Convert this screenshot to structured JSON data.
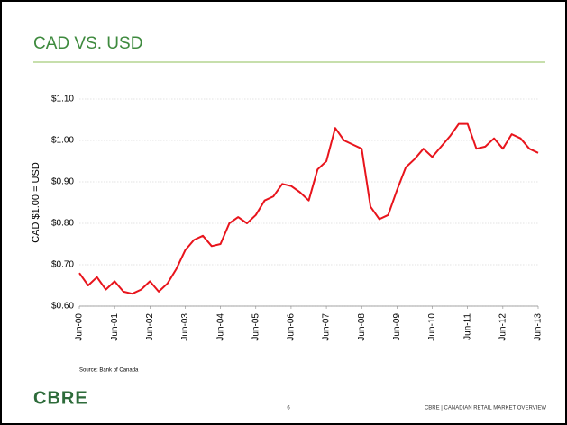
{
  "chart_data": {
    "type": "line",
    "title": "CAD VS. USD",
    "y_label": "CAD $1.00 = USD",
    "source": "Source: Bank of Canada",
    "x": [
      2000.5,
      2000.75,
      2001,
      2001.25,
      2001.5,
      2001.75,
      2002,
      2002.25,
      2002.5,
      2002.75,
      2003,
      2003.25,
      2003.5,
      2003.75,
      2004,
      2004.25,
      2004.5,
      2004.75,
      2005,
      2005.25,
      2005.5,
      2005.75,
      2006,
      2006.25,
      2006.5,
      2006.75,
      2007,
      2007.25,
      2007.5,
      2007.75,
      2008,
      2008.25,
      2008.5,
      2008.75,
      2009,
      2009.25,
      2009.5,
      2009.75,
      2010,
      2010.25,
      2010.5,
      2010.75,
      2011,
      2011.25,
      2011.5,
      2011.75,
      2012,
      2012.25,
      2012.5,
      2012.75,
      2013,
      2013.25,
      2013.5
    ],
    "series": [
      {
        "name": "CAD/USD",
        "color": "#e8141c",
        "values": [
          0.68,
          0.65,
          0.67,
          0.64,
          0.66,
          0.635,
          0.63,
          0.64,
          0.66,
          0.635,
          0.655,
          0.69,
          0.735,
          0.76,
          0.77,
          0.745,
          0.75,
          0.8,
          0.815,
          0.8,
          0.82,
          0.855,
          0.865,
          0.895,
          0.89,
          0.875,
          0.855,
          0.93,
          0.95,
          1.03,
          1,
          0.99,
          0.98,
          0.84,
          0.81,
          0.82,
          0.88,
          0.935,
          0.955,
          0.98,
          0.96,
          0.985,
          1.01,
          1.04,
          1.04,
          0.98,
          0.985,
          1.005,
          0.98,
          1.015,
          1.005,
          0.98,
          0.97
        ]
      }
    ],
    "xlim": [
      2000.5,
      2013.5
    ],
    "xticks": [
      {
        "value": 2000.5,
        "label": "Jun-00"
      },
      {
        "value": 2001.5,
        "label": "Jun-01"
      },
      {
        "value": 2002.5,
        "label": "Jun-02"
      },
      {
        "value": 2003.5,
        "label": "Jun-03"
      },
      {
        "value": 2004.5,
        "label": "Jun-04"
      },
      {
        "value": 2005.5,
        "label": "Jun-05"
      },
      {
        "value": 2006.5,
        "label": "Jun-06"
      },
      {
        "value": 2007.5,
        "label": "Jun-07"
      },
      {
        "value": 2008.5,
        "label": "Jun-08"
      },
      {
        "value": 2009.5,
        "label": "Jun-09"
      },
      {
        "value": 2010.5,
        "label": "Jun-10"
      },
      {
        "value": 2011.5,
        "label": "Jun-11"
      },
      {
        "value": 2012.5,
        "label": "Jun-12"
      },
      {
        "value": 2013.5,
        "label": "Jun-13"
      }
    ],
    "ylim": [
      0.6,
      1.1
    ],
    "yticks": [
      {
        "value": 0.6,
        "label": "$0.60"
      },
      {
        "value": 0.7,
        "label": "$0.70"
      },
      {
        "value": 0.8,
        "label": "$0.80"
      },
      {
        "value": 0.9,
        "label": "$0.90"
      },
      {
        "value": 1.0,
        "label": "$1.00"
      },
      {
        "value": 1.1,
        "label": "$1.10"
      }
    ],
    "grid": true
  },
  "footer": {
    "logo": "CBRE",
    "page_number": "6",
    "text": "CBRE  |  CANADIAN RETAIL MARKET OVERVIEW"
  }
}
